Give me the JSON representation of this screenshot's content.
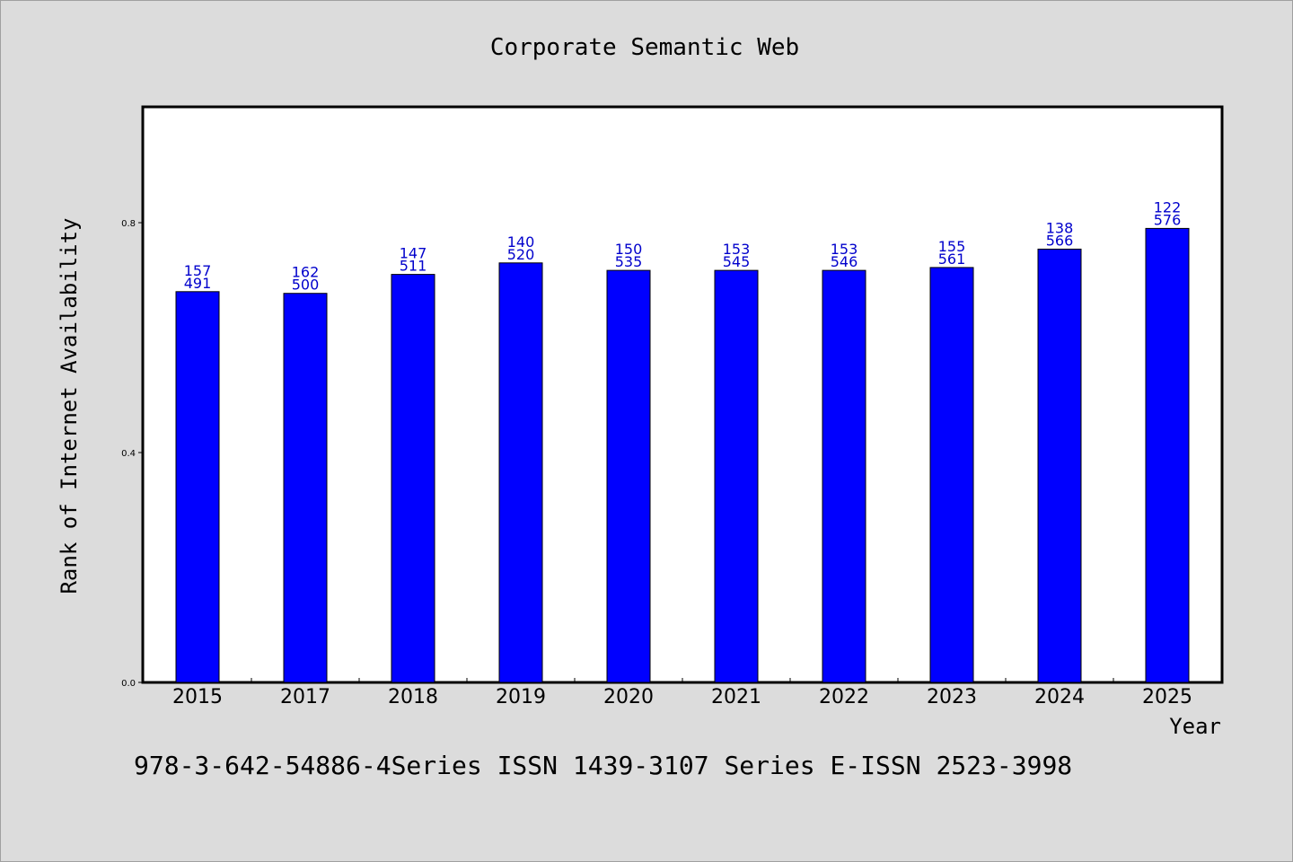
{
  "chart_data": {
    "type": "bar",
    "title": "Corporate Semantic Web",
    "xlabel": "Year",
    "ylabel": "Rank of Internet Availability",
    "categories": [
      "2015",
      "2017",
      "2018",
      "2019",
      "2020",
      "2021",
      "2022",
      "2023",
      "2024",
      "2025"
    ],
    "values": [
      0.68,
      0.677,
      0.71,
      0.73,
      0.717,
      0.717,
      0.717,
      0.722,
      0.754,
      0.79
    ],
    "data_labels": [
      [
        "157",
        "491"
      ],
      [
        "162",
        "500"
      ],
      [
        "147",
        "511"
      ],
      [
        "140",
        "520"
      ],
      [
        "150",
        "535"
      ],
      [
        "153",
        "545"
      ],
      [
        "153",
        "546"
      ],
      [
        "155",
        "561"
      ],
      [
        "138",
        "566"
      ],
      [
        "122",
        "576"
      ]
    ],
    "yticks": [
      "0.0",
      "0.4",
      "0.8"
    ],
    "ylim": [
      0,
      1.0
    ],
    "grid": false,
    "bar_color": "#0000ff",
    "label_color": "#0000cc"
  },
  "footer": {
    "text": "978-3-642-54886-4Series ISSN 1439-3107 Series E-ISSN 2523-3998"
  }
}
